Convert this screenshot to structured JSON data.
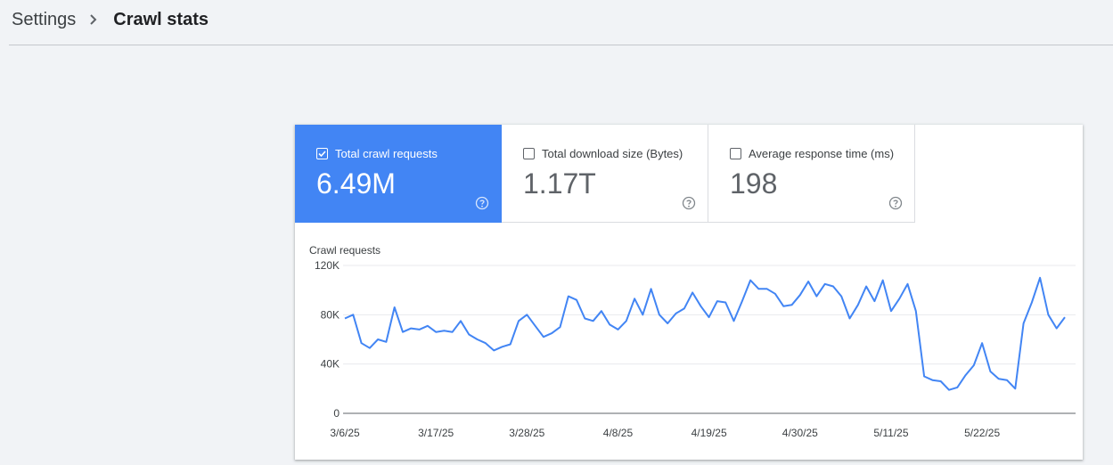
{
  "breadcrumb": {
    "parent": "Settings",
    "current": "Crawl stats"
  },
  "tiles": [
    {
      "label": "Total crawl requests",
      "value": "6.49M",
      "checked": true
    },
    {
      "label": "Total download size (Bytes)",
      "value": "1.17T",
      "checked": false
    },
    {
      "label": "Average response time (ms)",
      "value": "198",
      "checked": false
    }
  ],
  "icons": {
    "breadcrumb_separator": "chevron-right-icon",
    "help": "help-circle-icon",
    "checkbox": "checkbox-icon"
  },
  "colors": {
    "accent": "#4285f4",
    "line": "#4285f4",
    "background": "#f1f3f6"
  },
  "chart_data": {
    "type": "line",
    "title": "Crawl requests",
    "ylim": [
      0,
      120000
    ],
    "ytick_labels": [
      "0",
      "40K",
      "80K",
      "120K"
    ],
    "ytick_values": [
      0,
      40000,
      80000,
      120000
    ],
    "xtick_labels": [
      "3/6/25",
      "3/17/25",
      "3/28/25",
      "4/8/25",
      "4/19/25",
      "4/30/25",
      "5/11/25",
      "5/22/25"
    ],
    "x_start": "3/6/25",
    "x_end": "6/1/25",
    "grid": true,
    "legend": "none",
    "series": [
      {
        "values": [
          77000,
          80000,
          57000,
          53000,
          60000,
          58000,
          86000,
          66000,
          69000,
          68000,
          71000,
          66000,
          67000,
          66000,
          75000,
          64000,
          60000,
          57000,
          51000,
          54000,
          56000,
          75000,
          80000,
          71000,
          62000,
          65000,
          70000,
          95000,
          92000,
          77000,
          75000,
          83000,
          72000,
          68000,
          75000,
          93000,
          80000,
          101000,
          80000,
          73000,
          81000,
          85000,
          98000,
          87000,
          78000,
          91000,
          90000,
          75000,
          91000,
          108000,
          101000,
          101000,
          97000,
          87000,
          88000,
          96000,
          107000,
          95000,
          105000,
          103000,
          95000,
          77000,
          88000,
          103000,
          91000,
          108000,
          83000,
          93000,
          105000,
          83000,
          30000,
          27000,
          26000,
          19000,
          21000,
          31000,
          39000,
          57000,
          34000,
          28000,
          27000,
          20000,
          73000,
          90000,
          110000,
          80000,
          69000,
          78000
        ]
      }
    ]
  }
}
